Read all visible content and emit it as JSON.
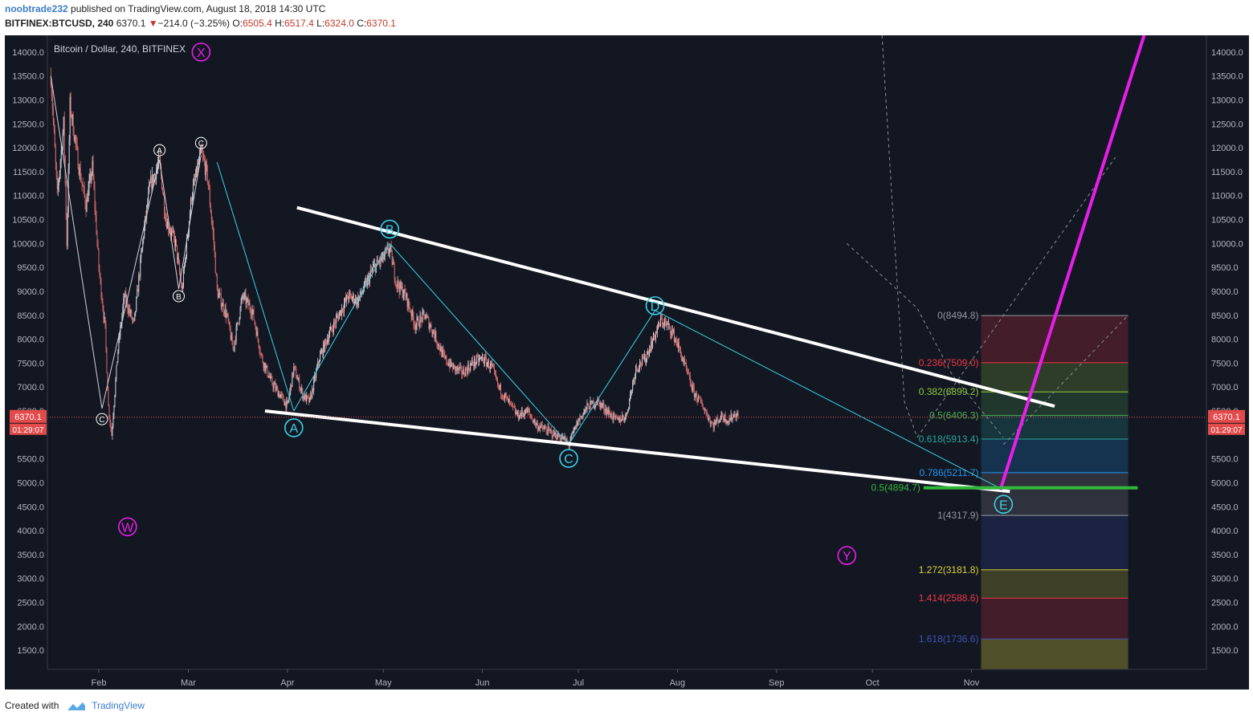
{
  "header": {
    "username": "noobtrade232",
    "published_text": " published on TradingView.com, August 18, 2018 14:30 UTC",
    "symbol": "BITFINEX:BTCUSD, 240",
    "last": "6370.1",
    "change": "−214.0 (−3.25%)",
    "open_label": "O:",
    "open": "6505.4",
    "high_label": "H:",
    "high": "6517.4",
    "low_label": "L:",
    "low": "6324.0",
    "close_label": "C:",
    "close": "6370.1"
  },
  "footer": {
    "created_with": "Created with",
    "brand": "TradingView"
  },
  "chart_data": {
    "type": "candlestick",
    "title": "Bitcoin / Dollar, 240, BITFINEX",
    "ylim": [
      1100,
      14350
    ],
    "y_ticks": [
      "14000.0",
      "13500.0",
      "13000.0",
      "12500.0",
      "12000.0",
      "11500.0",
      "11000.0",
      "10500.0",
      "10000.0",
      "9500.0",
      "9000.0",
      "8500.0",
      "8000.0",
      "7500.0",
      "7000.0",
      "6500.0",
      "6000.0",
      "5500.0",
      "5000.0",
      "4500.0",
      "4000.0",
      "3500.0",
      "3000.0",
      "2500.0",
      "2000.0",
      "1500.0"
    ],
    "y_tick_values": [
      14000,
      13500,
      13000,
      12500,
      12000,
      11500,
      11000,
      10500,
      10000,
      9500,
      9000,
      8500,
      8000,
      7500,
      7000,
      6500,
      6000,
      5500,
      5000,
      4500,
      4000,
      3500,
      3000,
      2500,
      2000,
      1500
    ],
    "x_ticks": [
      "Feb",
      "Mar",
      "Apr",
      "May",
      "Jun",
      "Jul",
      "Aug",
      "Sep",
      "Oct",
      "Nov"
    ],
    "x_tick_days": [
      31,
      59,
      90,
      120,
      151,
      181,
      212,
      243,
      273,
      304
    ],
    "price_path": [
      [
        16,
        13500
      ],
      [
        18,
        11000
      ],
      [
        20,
        12500
      ],
      [
        21,
        10000
      ],
      [
        22,
        12900
      ],
      [
        25,
        11500
      ],
      [
        27,
        10800
      ],
      [
        29,
        11600
      ],
      [
        31,
        9500
      ],
      [
        33,
        8200
      ],
      [
        34,
        6600
      ],
      [
        35,
        6000
      ],
      [
        37,
        7800
      ],
      [
        39,
        8900
      ],
      [
        42,
        8300
      ],
      [
        45,
        10200
      ],
      [
        47,
        11200
      ],
      [
        50,
        11700
      ],
      [
        52,
        10500
      ],
      [
        55,
        10000
      ],
      [
        57,
        9000
      ],
      [
        60,
        11000
      ],
      [
        63,
        11900
      ],
      [
        65,
        11400
      ],
      [
        67,
        10000
      ],
      [
        68,
        9000
      ],
      [
        71,
        8500
      ],
      [
        73,
        7800
      ],
      [
        76,
        8900
      ],
      [
        79,
        8600
      ],
      [
        82,
        7600
      ],
      [
        85,
        7100
      ],
      [
        88,
        6800
      ],
      [
        90,
        6600
      ],
      [
        92,
        7400
      ],
      [
        95,
        6800
      ],
      [
        97,
        6700
      ],
      [
        100,
        7600
      ],
      [
        103,
        8100
      ],
      [
        106,
        8500
      ],
      [
        109,
        8900
      ],
      [
        112,
        8800
      ],
      [
        115,
        9200
      ],
      [
        117,
        9500
      ],
      [
        120,
        9700
      ],
      [
        122,
        9900
      ],
      [
        124,
        9200
      ],
      [
        127,
        8900
      ],
      [
        130,
        8300
      ],
      [
        133,
        8500
      ],
      [
        136,
        8100
      ],
      [
        139,
        7600
      ],
      [
        142,
        7400
      ],
      [
        145,
        7300
      ],
      [
        148,
        7500
      ],
      [
        151,
        7600
      ],
      [
        154,
        7400
      ],
      [
        156,
        7000
      ],
      [
        159,
        6700
      ],
      [
        162,
        6400
      ],
      [
        165,
        6500
      ],
      [
        168,
        6200
      ],
      [
        171,
        6100
      ],
      [
        174,
        6000
      ],
      [
        177,
        5900
      ],
      [
        178,
        5800
      ],
      [
        181,
        6300
      ],
      [
        184,
        6600
      ],
      [
        187,
        6700
      ],
      [
        190,
        6500
      ],
      [
        193,
        6300
      ],
      [
        196,
        6400
      ],
      [
        199,
        7400
      ],
      [
        202,
        7600
      ],
      [
        205,
        8100
      ],
      [
        207,
        8400
      ],
      [
        210,
        8200
      ],
      [
        212,
        7900
      ],
      [
        214,
        7500
      ],
      [
        217,
        6900
      ],
      [
        220,
        6600
      ],
      [
        223,
        6200
      ],
      [
        226,
        6400
      ],
      [
        228,
        6300
      ],
      [
        230,
        6450
      ],
      [
        231,
        6370
      ]
    ],
    "series": [
      {
        "name": "Fib retracement",
        "levels": [
          {
            "label": "0(8494.8)",
            "value": 8494.8,
            "color": "#9598a1"
          },
          {
            "label": "0.236(7509.0)",
            "value": 7509.0,
            "color": "#f23645"
          },
          {
            "label": "0.382(6899.2)",
            "value": 6899.2,
            "color": "#8fca3a"
          },
          {
            "label": "0.5(6406.3)",
            "value": 6406.3,
            "color": "#4caf50"
          },
          {
            "label": "0.618(5913.4)",
            "value": 5913.4,
            "color": "#26a69a"
          },
          {
            "label": "0.786(5211.7)",
            "value": 5211.7,
            "color": "#2196f3"
          },
          {
            "label": "1(4317.9)",
            "value": 4317.9,
            "color": "#9598a1"
          },
          {
            "label": "1.272(3181.8)",
            "value": 3181.8,
            "color": "#d9d13d"
          },
          {
            "label": "1.414(2588.6)",
            "value": 2588.6,
            "color": "#f23645"
          },
          {
            "label": "1.618(1736.6)",
            "value": 1736.6,
            "color": "#3f51b5"
          }
        ]
      }
    ],
    "annotations": [
      {
        "text": "X",
        "day": 63,
        "value": 14000,
        "style": "magenta",
        "size": "large"
      },
      {
        "text": "W",
        "day": 40,
        "value": 4080,
        "style": "magenta",
        "size": "large"
      },
      {
        "text": "Y",
        "day": 265,
        "value": 3480,
        "style": "magenta",
        "size": "large"
      },
      {
        "text": "A",
        "day": 50,
        "value": 11950,
        "style": "white",
        "size": "small"
      },
      {
        "text": "B",
        "day": 56,
        "value": 8900,
        "style": "white",
        "size": "small"
      },
      {
        "text": "C",
        "day": 63,
        "value": 12100,
        "style": "white",
        "size": "small"
      },
      {
        "text": "C",
        "day": 32,
        "value": 6330,
        "style": "white",
        "size": "small"
      },
      {
        "text": "A",
        "day": 92,
        "value": 6150,
        "style": "cyan",
        "size": "large"
      },
      {
        "text": "B",
        "day": 122,
        "value": 10300,
        "style": "cyan",
        "size": "large"
      },
      {
        "text": "C",
        "day": 178,
        "value": 5510,
        "style": "cyan",
        "size": "large"
      },
      {
        "text": "D",
        "day": 205,
        "value": 8700,
        "style": "cyan",
        "size": "large"
      },
      {
        "text": "E",
        "day": 314,
        "value": 4550,
        "style": "cyan",
        "size": "large"
      }
    ],
    "target_label": "0.5(4894.7)",
    "target_value": 4894.7,
    "price_label": "6370.1",
    "countdown_label": "01:29:07",
    "grid": false,
    "colors": {
      "background": "#131722",
      "up": "#c9ccd4",
      "down": "#d96a6a",
      "trend": "#ffffff",
      "wave": "#3ad1e6",
      "breakout": "#e91eeb",
      "target": "#2fb83a",
      "price_line": "#e34b4b",
      "axis_text": "#b2b5be"
    }
  }
}
